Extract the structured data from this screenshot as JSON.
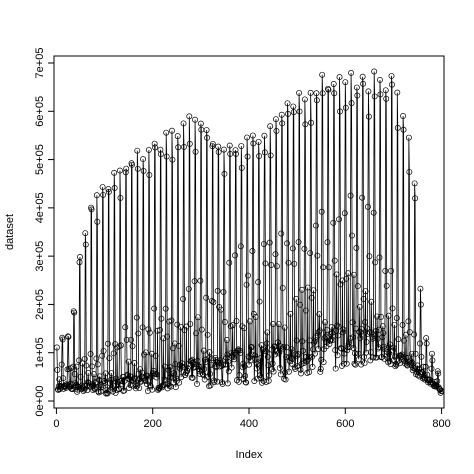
{
  "chart_data": {
    "type": "line",
    "subtype": "points-and-lines",
    "title": "",
    "xlabel": "Index",
    "ylabel": "dataset",
    "xlim": [
      -5,
      805
    ],
    "ylim": [
      0,
      700000
    ],
    "x_ticks": [
      {
        "value": 0,
        "label": "0"
      },
      {
        "value": 200,
        "label": "200"
      },
      {
        "value": 400,
        "label": "400"
      },
      {
        "value": 600,
        "label": "600"
      },
      {
        "value": 800,
        "label": "800"
      }
    ],
    "y_ticks": [
      {
        "value": 0,
        "label": "0e+00"
      },
      {
        "value": 100000,
        "label": "1e+05"
      },
      {
        "value": 200000,
        "label": "2e+05"
      },
      {
        "value": 300000,
        "label": "3e+05"
      },
      {
        "value": 400000,
        "label": "4e+05"
      },
      {
        "value": 500000,
        "label": "5e+05"
      },
      {
        "value": 600000,
        "label": "6e+05"
      },
      {
        "value": 700000,
        "label": "7e+05"
      }
    ],
    "grid": false,
    "legend": "none",
    "n_points": 800,
    "cycle_length": 12,
    "description_of_pattern": "weekly-like periodic cycles; peaks rise from ~1.3e+05 at index 0 to ~6.9e+05 around index 570-700, then drop sharply after ~720 to ~4e+04 at index 800",
    "envelope_peaks": [
      {
        "x": 0,
        "y": 130000
      },
      {
        "x": 30,
        "y": 140000
      },
      {
        "x": 50,
        "y": 320000
      },
      {
        "x": 75,
        "y": 420000
      },
      {
        "x": 100,
        "y": 450000
      },
      {
        "x": 140,
        "y": 500000
      },
      {
        "x": 200,
        "y": 540000
      },
      {
        "x": 260,
        "y": 590000
      },
      {
        "x": 300,
        "y": 590000
      },
      {
        "x": 340,
        "y": 530000
      },
      {
        "x": 400,
        "y": 560000
      },
      {
        "x": 450,
        "y": 580000
      },
      {
        "x": 500,
        "y": 650000
      },
      {
        "x": 570,
        "y": 690000
      },
      {
        "x": 620,
        "y": 680000
      },
      {
        "x": 700,
        "y": 685000
      },
      {
        "x": 725,
        "y": 600000
      },
      {
        "x": 745,
        "y": 450000
      },
      {
        "x": 760,
        "y": 160000
      },
      {
        "x": 800,
        "y": 40000
      }
    ],
    "envelope_troughs": [
      {
        "x": 0,
        "y": 20000
      },
      {
        "x": 100,
        "y": 15000
      },
      {
        "x": 200,
        "y": 20000
      },
      {
        "x": 300,
        "y": 30000
      },
      {
        "x": 400,
        "y": 35000
      },
      {
        "x": 500,
        "y": 45000
      },
      {
        "x": 600,
        "y": 70000
      },
      {
        "x": 680,
        "y": 80000
      },
      {
        "x": 740,
        "y": 60000
      },
      {
        "x": 800,
        "y": 20000
      }
    ],
    "mid_band": [
      {
        "x": 0,
        "y": 60000
      },
      {
        "x": 100,
        "y": 100000
      },
      {
        "x": 200,
        "y": 150000
      },
      {
        "x": 300,
        "y": 200000
      },
      {
        "x": 400,
        "y": 260000
      },
      {
        "x": 500,
        "y": 290000
      },
      {
        "x": 600,
        "y": 340000
      },
      {
        "x": 650,
        "y": 330000
      },
      {
        "x": 700,
        "y": 200000
      },
      {
        "x": 750,
        "y": 100000
      },
      {
        "x": 800,
        "y": 30000
      }
    ],
    "marker_color": "#000000",
    "line_color": "#000000"
  }
}
